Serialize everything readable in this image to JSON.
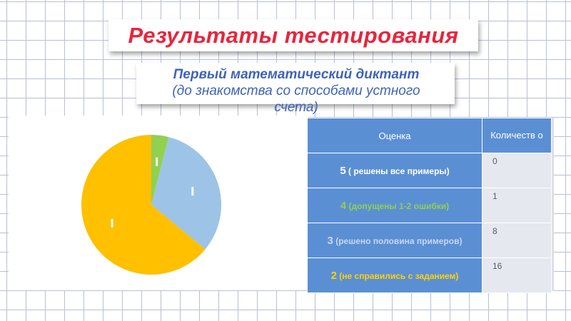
{
  "header": {
    "title": "Результаты тестирования",
    "subtitle_line1": "Первый математический диктант",
    "subtitle_line2": "(до знакомства со способами устного",
    "subtitle_line3": "счета)"
  },
  "table": {
    "headers": [
      "Оценка",
      "Количеств о"
    ],
    "rows": [
      {
        "grade": "5",
        "note": " ( решены все примеры)",
        "count": "0",
        "color": "#ffffff"
      },
      {
        "grade": "4",
        "note": " (допущены 1-2 ошибки)",
        "count": "1",
        "color": "#8fd14f"
      },
      {
        "grade": "3",
        "note": " (решено  половина примеров)",
        "count": "8",
        "color": "#c9d7f2"
      },
      {
        "grade": "2",
        "note": " (не справились с заданием)",
        "count": "16",
        "color": "#ffd200"
      }
    ]
  },
  "chart_data": {
    "type": "pie",
    "categories": [
      "5",
      "4",
      "3",
      "2"
    ],
    "values": [
      0,
      1,
      8,
      16
    ],
    "colors": [
      "#ffffff",
      "#92d050",
      "#9dc3e6",
      "#ffc000"
    ],
    "title": "",
    "legend": "none",
    "data_labels": "small white markers"
  }
}
